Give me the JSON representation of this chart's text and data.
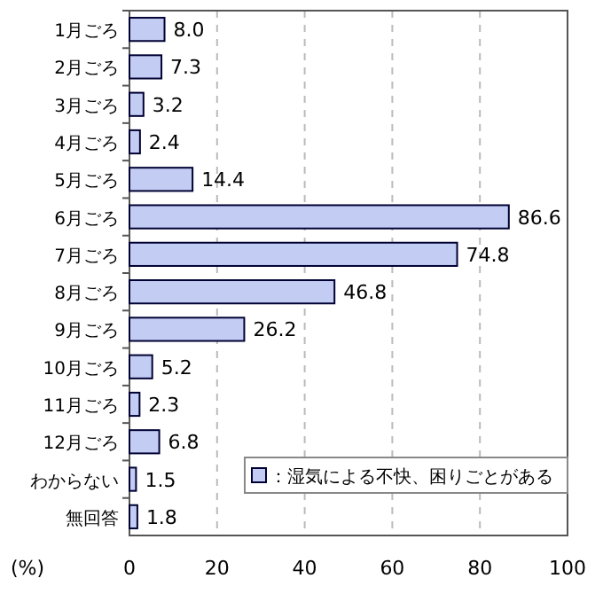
{
  "chart_data": {
    "type": "bar",
    "orientation": "horizontal",
    "xlabel": "(%)",
    "categories": [
      "1月ごろ",
      "2月ごろ",
      "3月ごろ",
      "4月ごろ",
      "5月ごろ",
      "6月ごろ",
      "7月ごろ",
      "8月ごろ",
      "9月ごろ",
      "10月ごろ",
      "11月ごろ",
      "12月ごろ",
      "わからない",
      "無回答"
    ],
    "series": [
      {
        "name": "：湿気による不快、困りごとがある",
        "color": "#c3cdf3",
        "values": [
          8.0,
          7.3,
          3.2,
          2.4,
          14.4,
          86.6,
          74.8,
          46.8,
          26.2,
          5.2,
          2.3,
          6.8,
          1.5,
          1.8
        ],
        "value_labels": [
          "8.0",
          "7.3",
          "3.2",
          "2.4",
          "14.4",
          "86.6",
          "74.8",
          "46.8",
          "26.2",
          "5.2",
          "2.3",
          "6.8",
          "1.5",
          "1.8"
        ]
      }
    ],
    "xlim": [
      0,
      100
    ],
    "xticks": [
      0,
      20,
      40,
      60,
      80,
      100
    ],
    "grid": "x",
    "legend": "bottom right"
  }
}
